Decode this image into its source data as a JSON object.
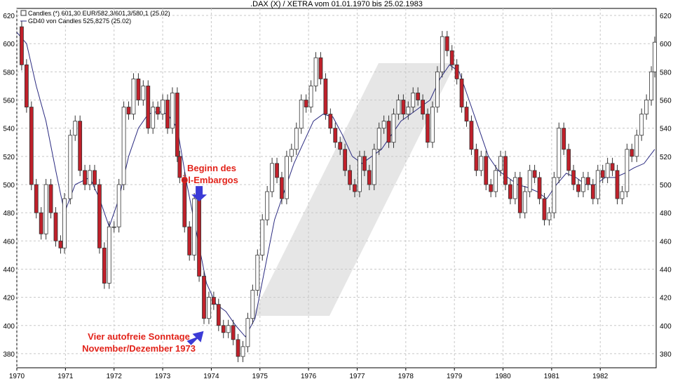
{
  "chart_data": {
    "type": "candlestick",
    "title": ".DAX (X) / XETRA vom 01.01.1970 bis 25.02.1983",
    "legend": [
      "Candles (*) 601,30 EUR/582,3/601,3/580,1 (25.02)",
      "GD40 von Candles 525,8275 (25.02)"
    ],
    "legend_placement": "top-left",
    "xlabels": [
      "1970",
      "1971",
      "1972",
      "1973",
      "1974",
      "1975",
      "1976",
      "1977",
      "1978",
      "1979",
      "1980",
      "1981",
      "1982"
    ],
    "ylabels": [
      "380",
      "400",
      "420",
      "440",
      "460",
      "480",
      "500",
      "520",
      "540",
      "560",
      "580",
      "600",
      "620"
    ],
    "ylim": [
      370,
      625
    ],
    "xlim": [
      1970.0,
      1983.15
    ],
    "grid": true,
    "series_main": {
      "name": "Candles",
      "points": [
        [
          1970.0,
          612
        ],
        [
          1970.1,
          585
        ],
        [
          1970.2,
          555
        ],
        [
          1970.3,
          500
        ],
        [
          1970.4,
          480
        ],
        [
          1970.5,
          465
        ],
        [
          1970.6,
          500
        ],
        [
          1970.7,
          480
        ],
        [
          1970.8,
          460
        ],
        [
          1970.9,
          455
        ],
        [
          1970.98,
          490
        ],
        [
          1971.1,
          535
        ],
        [
          1971.2,
          545
        ],
        [
          1971.3,
          510
        ],
        [
          1971.4,
          500
        ],
        [
          1971.5,
          510
        ],
        [
          1971.6,
          500
        ],
        [
          1971.7,
          455
        ],
        [
          1971.8,
          430
        ],
        [
          1971.9,
          470
        ],
        [
          1972.0,
          470
        ],
        [
          1972.1,
          500
        ],
        [
          1972.2,
          555
        ],
        [
          1972.3,
          550
        ],
        [
          1972.4,
          575
        ],
        [
          1972.5,
          560
        ],
        [
          1972.6,
          570
        ],
        [
          1972.7,
          540
        ],
        [
          1972.8,
          555
        ],
        [
          1972.9,
          550
        ],
        [
          1973.0,
          560
        ],
        [
          1973.1,
          540
        ],
        [
          1973.2,
          565
        ],
        [
          1973.3,
          520
        ],
        [
          1973.35,
          505
        ],
        [
          1973.45,
          470
        ],
        [
          1973.55,
          450
        ],
        [
          1973.65,
          490
        ],
        [
          1973.75,
          435
        ],
        [
          1973.85,
          405
        ],
        [
          1973.95,
          420
        ],
        [
          1974.05,
          415
        ],
        [
          1974.15,
          400
        ],
        [
          1974.25,
          395
        ],
        [
          1974.35,
          400
        ],
        [
          1974.45,
          390
        ],
        [
          1974.55,
          378
        ],
        [
          1974.65,
          385
        ],
        [
          1974.75,
          405
        ],
        [
          1974.85,
          425
        ],
        [
          1974.95,
          450
        ],
        [
          1975.05,
          475
        ],
        [
          1975.15,
          495
        ],
        [
          1975.25,
          515
        ],
        [
          1975.35,
          505
        ],
        [
          1975.45,
          490
        ],
        [
          1975.55,
          520
        ],
        [
          1975.65,
          525
        ],
        [
          1975.75,
          540
        ],
        [
          1975.85,
          560
        ],
        [
          1975.95,
          555
        ],
        [
          1976.05,
          570
        ],
        [
          1976.15,
          590
        ],
        [
          1976.25,
          575
        ],
        [
          1976.35,
          550
        ],
        [
          1976.45,
          540
        ],
        [
          1976.55,
          530
        ],
        [
          1976.65,
          525
        ],
        [
          1976.75,
          510
        ],
        [
          1976.85,
          500
        ],
        [
          1976.95,
          495
        ],
        [
          1977.05,
          520
        ],
        [
          1977.15,
          510
        ],
        [
          1977.25,
          500
        ],
        [
          1977.35,
          525
        ],
        [
          1977.45,
          540
        ],
        [
          1977.55,
          545
        ],
        [
          1977.65,
          530
        ],
        [
          1977.75,
          550
        ],
        [
          1977.85,
          560
        ],
        [
          1977.95,
          550
        ],
        [
          1978.05,
          555
        ],
        [
          1978.15,
          565
        ],
        [
          1978.25,
          560
        ],
        [
          1978.35,
          550
        ],
        [
          1978.45,
          530
        ],
        [
          1978.55,
          555
        ],
        [
          1978.65,
          580
        ],
        [
          1978.75,
          605
        ],
        [
          1978.85,
          595
        ],
        [
          1978.95,
          585
        ],
        [
          1979.05,
          575
        ],
        [
          1979.15,
          555
        ],
        [
          1979.25,
          545
        ],
        [
          1979.35,
          525
        ],
        [
          1979.45,
          510
        ],
        [
          1979.55,
          520
        ],
        [
          1979.65,
          500
        ],
        [
          1979.75,
          495
        ],
        [
          1979.85,
          510
        ],
        [
          1979.95,
          520
        ],
        [
          1980.05,
          500
        ],
        [
          1980.15,
          490
        ],
        [
          1980.25,
          505
        ],
        [
          1980.35,
          480
        ],
        [
          1980.45,
          495
        ],
        [
          1980.55,
          510
        ],
        [
          1980.65,
          505
        ],
        [
          1980.75,
          490
        ],
        [
          1980.85,
          475
        ],
        [
          1980.95,
          480
        ],
        [
          1981.05,
          505
        ],
        [
          1981.15,
          540
        ],
        [
          1981.25,
          525
        ],
        [
          1981.35,
          510
        ],
        [
          1981.45,
          500
        ],
        [
          1981.55,
          495
        ],
        [
          1981.65,
          505
        ],
        [
          1981.75,
          500
        ],
        [
          1981.85,
          490
        ],
        [
          1981.95,
          510
        ],
        [
          1982.05,
          505
        ],
        [
          1982.15,
          515
        ],
        [
          1982.25,
          510
        ],
        [
          1982.35,
          490
        ],
        [
          1982.45,
          495
        ],
        [
          1982.55,
          525
        ],
        [
          1982.65,
          520
        ],
        [
          1982.75,
          535
        ],
        [
          1982.85,
          550
        ],
        [
          1982.95,
          560
        ],
        [
          1983.05,
          580
        ],
        [
          1983.12,
          601
        ]
      ]
    },
    "series_ma": {
      "name": "GD40",
      "points": [
        [
          1970.0,
          608
        ],
        [
          1970.2,
          600
        ],
        [
          1970.4,
          570
        ],
        [
          1970.6,
          545
        ],
        [
          1970.8,
          510
        ],
        [
          1970.98,
          480
        ],
        [
          1971.2,
          500
        ],
        [
          1971.5,
          505
        ],
        [
          1971.7,
          490
        ],
        [
          1971.9,
          470
        ],
        [
          1972.1,
          490
        ],
        [
          1972.3,
          520
        ],
        [
          1972.5,
          540
        ],
        [
          1972.7,
          550
        ],
        [
          1972.9,
          552
        ],
        [
          1973.1,
          550
        ],
        [
          1973.3,
          540
        ],
        [
          1973.5,
          500
        ],
        [
          1973.7,
          465
        ],
        [
          1973.9,
          430
        ],
        [
          1974.1,
          415
        ],
        [
          1974.3,
          410
        ],
        [
          1974.5,
          400
        ],
        [
          1974.7,
          392
        ],
        [
          1974.9,
          405
        ],
        [
          1975.1,
          440
        ],
        [
          1975.3,
          475
        ],
        [
          1975.5,
          495
        ],
        [
          1975.7,
          515
        ],
        [
          1975.9,
          530
        ],
        [
          1976.1,
          545
        ],
        [
          1976.3,
          550
        ],
        [
          1976.5,
          548
        ],
        [
          1976.7,
          535
        ],
        [
          1976.9,
          520
        ],
        [
          1977.1,
          515
        ],
        [
          1977.3,
          520
        ],
        [
          1977.5,
          525
        ],
        [
          1977.7,
          535
        ],
        [
          1977.9,
          545
        ],
        [
          1978.1,
          550
        ],
        [
          1978.3,
          555
        ],
        [
          1978.5,
          560
        ],
        [
          1978.7,
          575
        ],
        [
          1978.9,
          585
        ],
        [
          1979.1,
          580
        ],
        [
          1979.3,
          560
        ],
        [
          1979.5,
          540
        ],
        [
          1979.7,
          520
        ],
        [
          1979.9,
          510
        ],
        [
          1980.1,
          505
        ],
        [
          1980.3,
          500
        ],
        [
          1980.5,
          498
        ],
        [
          1980.7,
          495
        ],
        [
          1980.9,
          490
        ],
        [
          1981.1,
          500
        ],
        [
          1981.3,
          508
        ],
        [
          1981.5,
          505
        ],
        [
          1981.7,
          500
        ],
        [
          1981.9,
          500
        ],
        [
          1982.1,
          505
        ],
        [
          1982.3,
          505
        ],
        [
          1982.5,
          508
        ],
        [
          1982.7,
          512
        ],
        [
          1982.9,
          515
        ],
        [
          1983.12,
          525
        ]
      ]
    },
    "annotations": [
      {
        "lines": [
          "Beginn des",
          "Öl-Embargos"
        ],
        "date": 1973.75,
        "value": 488
      },
      {
        "lines": [
          "Vier autofreie Sonntage",
          "November/Dezember 1973"
        ],
        "date": 1973.9,
        "value": 400
      }
    ],
    "colors": {
      "bear_candle": "#c0202a",
      "bull_candle": "#ffffff",
      "candle_outline": "#333333",
      "ma_line": "#2a2a80",
      "grid": "#c8c8c8",
      "annotation_text": "#e2231a",
      "arrow": "#3b3bd6",
      "watermark": "#e6e6e6"
    }
  }
}
